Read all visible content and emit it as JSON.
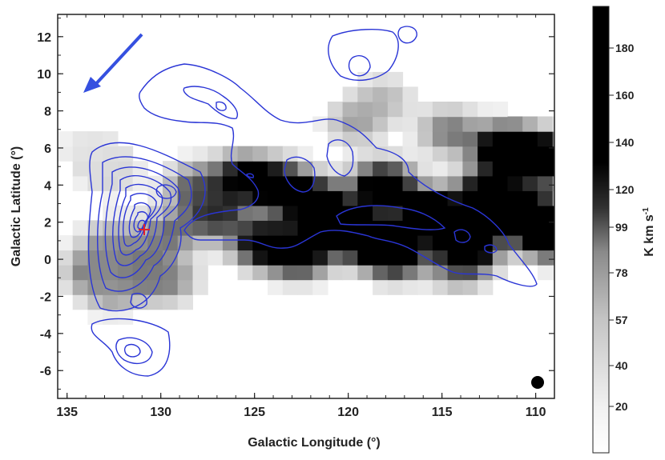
{
  "chart_data": {
    "type": "heatmap",
    "title": "",
    "xlabel": "Galactic Longitude (°)",
    "ylabel": "Galactic Latitude (°)",
    "xlim": [
      135.5,
      109.0
    ],
    "ylim": [
      -7.5,
      13.2
    ],
    "x_ticks": [
      "135",
      "130",
      "125",
      "120",
      "115",
      "110"
    ],
    "y_ticks": [
      "12",
      "10",
      "8",
      "6",
      "4",
      "2",
      "0",
      "-2",
      "-4",
      "-6"
    ],
    "colorbar": {
      "label": "K km s",
      "label_superscript": "-1",
      "ticks": [
        "180",
        "160",
        "140",
        "120",
        "99",
        "78",
        "57",
        "40",
        "20"
      ],
      "range": [
        0,
        200
      ],
      "colormap": "white-to-black"
    },
    "contour_color": "#2a35d6",
    "marker": {
      "symbol": "+",
      "color": "#e0202a",
      "l": 131.0,
      "b": 1.5
    },
    "beam": {
      "l": 109.6,
      "b": -6.7
    },
    "arrow": {
      "from": [
        130.0,
        11.5
      ],
      "to": [
        134.5,
        9.0
      ],
      "color": "#3550e0"
    },
    "emission_band": [
      {
        "l": 134.5,
        "b": 5.7,
        "v": 10
      },
      {
        "l": 133.5,
        "b": 5.0,
        "v": 14
      },
      {
        "l": 133.0,
        "b": 4.2,
        "v": 18
      },
      {
        "l": 133.0,
        "b": 0.5,
        "v": 45
      },
      {
        "l": 134.0,
        "b": -1.0,
        "v": 55
      },
      {
        "l": 133.0,
        "b": -2.0,
        "v": 40
      },
      {
        "l": 131.5,
        "b": -1.0,
        "v": 65
      },
      {
        "l": 130.0,
        "b": -1.5,
        "v": 50
      },
      {
        "l": 130.0,
        "b": 1.0,
        "v": 60
      },
      {
        "l": 128.5,
        "b": 3.5,
        "v": 70
      },
      {
        "l": 127.5,
        "b": 2.0,
        "v": 95
      },
      {
        "l": 126.0,
        "b": 4.0,
        "v": 120
      },
      {
        "l": 125.0,
        "b": 0.5,
        "v": 130
      },
      {
        "l": 124.0,
        "b": 3.5,
        "v": 150
      },
      {
        "l": 123.0,
        "b": 0.0,
        "v": 160
      },
      {
        "l": 122.0,
        "b": 2.5,
        "v": 185
      },
      {
        "l": 120.0,
        "b": 1.0,
        "v": 200
      },
      {
        "l": 118.5,
        "b": 3.5,
        "v": 170
      },
      {
        "l": 118.0,
        "b": 0.0,
        "v": 190
      },
      {
        "l": 116.0,
        "b": 2.0,
        "v": 200
      },
      {
        "l": 114.0,
        "b": 0.5,
        "v": 190
      },
      {
        "l": 113.0,
        "b": 3.0,
        "v": 180
      },
      {
        "l": 112.0,
        "b": 5.5,
        "v": 200
      },
      {
        "l": 111.0,
        "b": 2.0,
        "v": 200
      },
      {
        "l": 110.0,
        "b": 5.0,
        "v": 200
      },
      {
        "l": 109.5,
        "b": 1.0,
        "v": 200
      },
      {
        "l": 120.0,
        "b": 7.0,
        "v": 40
      },
      {
        "l": 118.5,
        "b": 8.3,
        "v": 30
      },
      {
        "l": 115.0,
        "b": 6.5,
        "v": 60
      },
      {
        "l": 114.5,
        "b": -0.8,
        "v": 60
      }
    ]
  }
}
